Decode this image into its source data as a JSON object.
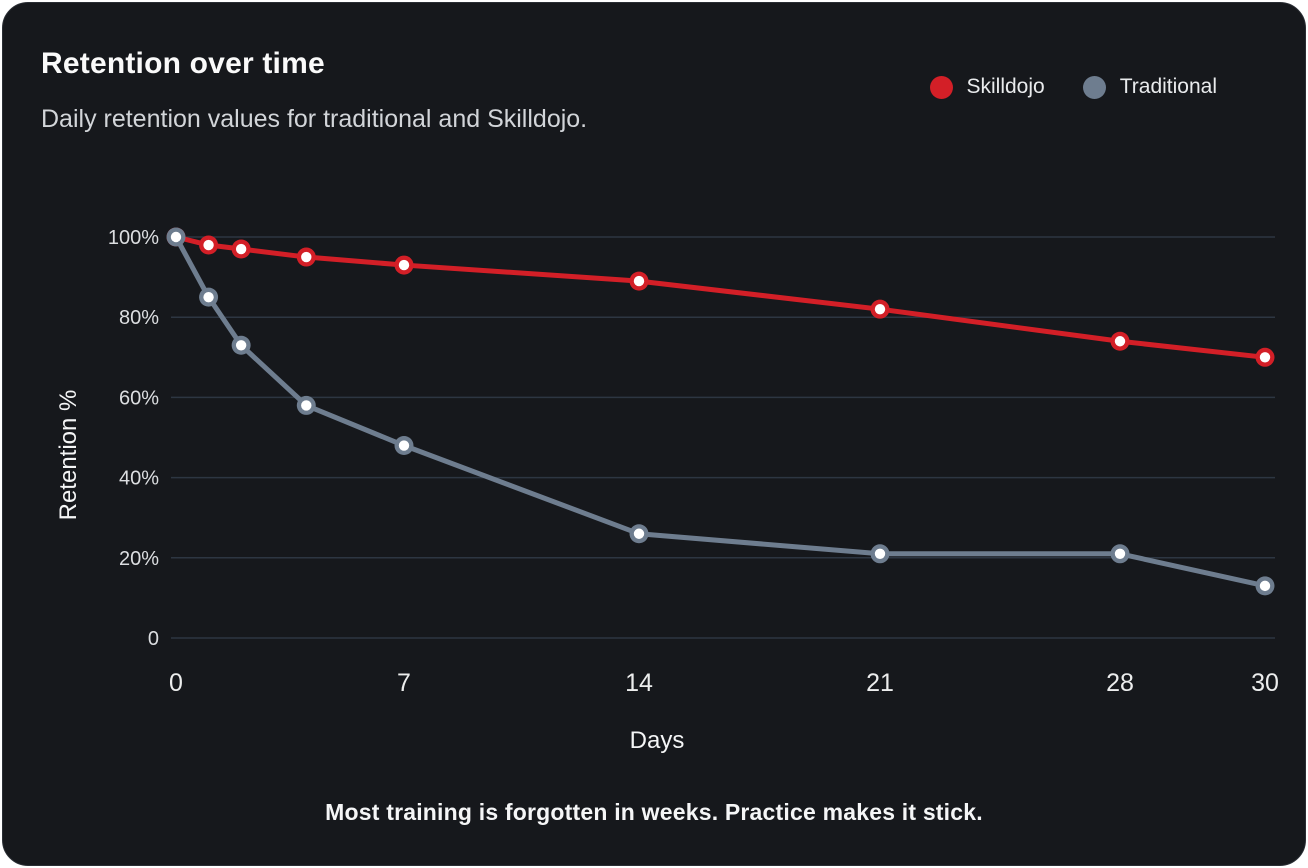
{
  "header": {
    "title": "Retention over time",
    "subtitle": "Daily retention values for traditional and Skilldojo."
  },
  "footer": {
    "note": "Most training is forgotten in weeks. Practice makes it stick."
  },
  "chart_data": {
    "type": "line",
    "x": [
      0,
      1,
      2,
      4,
      7,
      14,
      21,
      28,
      30
    ],
    "series": [
      {
        "name": "Skilldojo",
        "color": "#d31f27",
        "values": [
          100,
          98,
          97,
          95,
          93,
          89,
          82,
          74,
          70
        ]
      },
      {
        "name": "Traditional",
        "color": "#6e7d8f",
        "values": [
          100,
          85,
          73,
          58,
          48,
          26,
          21,
          21,
          13
        ]
      }
    ],
    "xlabel": "Days",
    "ylabel": "Retention %",
    "xlim": [
      0,
      30
    ],
    "ylim": [
      0,
      100
    ],
    "x_tick_days": [
      0,
      7,
      14,
      21,
      28,
      30
    ],
    "x_tick_labels": [
      "0",
      "7",
      "14",
      "21",
      "28",
      "30"
    ],
    "y_tick_values": [
      100,
      80,
      60,
      40,
      20,
      0
    ],
    "y_tick_labels": [
      "100%",
      "80%",
      "60%",
      "40%",
      "20%",
      "0"
    ],
    "grid": "horizontal-only",
    "legend_position": "top-right",
    "marker_style": "circle-with-white-core"
  },
  "theme": {
    "card_bg": "#16181c",
    "grid_color": "#2d3642",
    "y_tick_color": "#dcdee1",
    "x_tick_color": "#eceded",
    "marker_core": "#ffffff"
  }
}
